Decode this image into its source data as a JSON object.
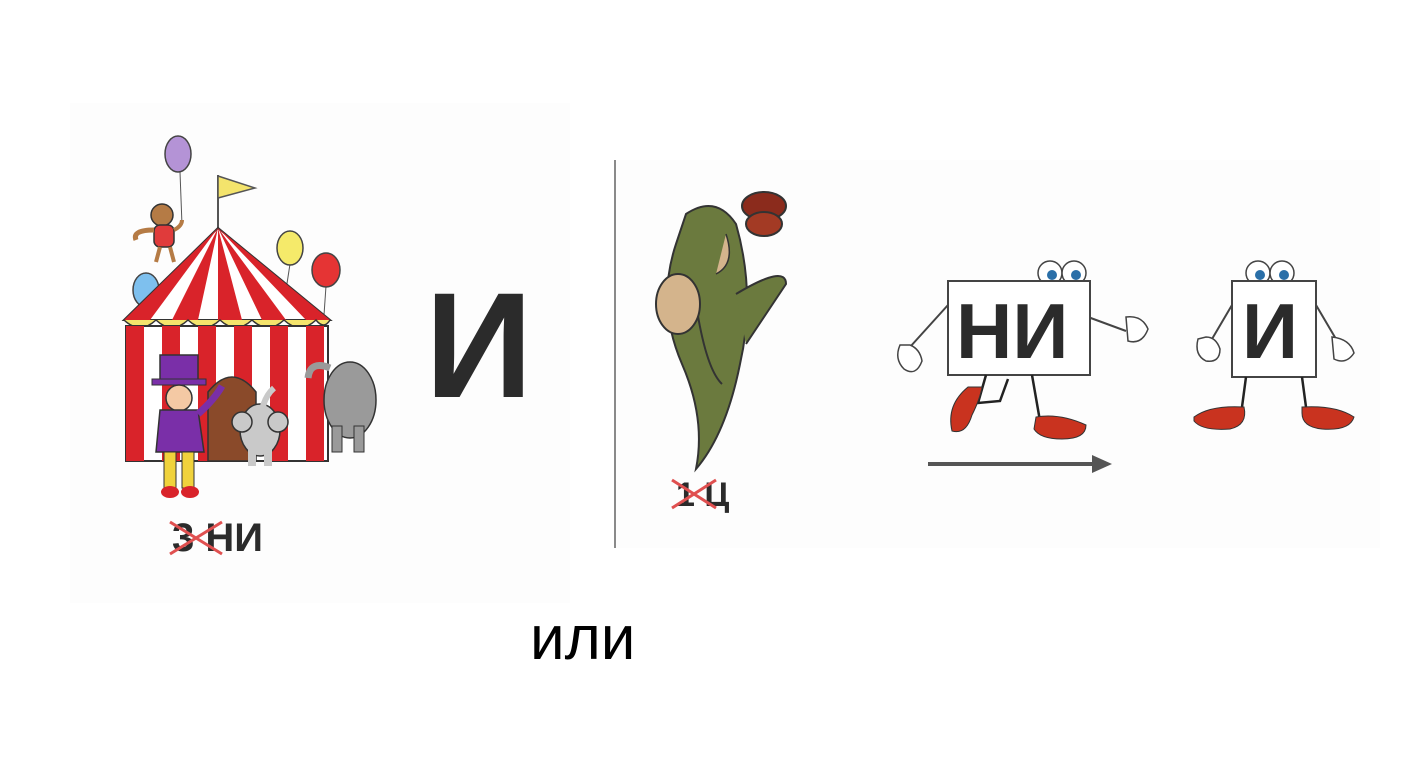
{
  "left_rebus": {
    "big_letter": "И",
    "struck_digit": "3",
    "suffix": "НИ"
  },
  "right_rebus": {
    "struck_digit": "1",
    "suffix": "Ц",
    "card_moving": "НИ",
    "card_standing": "И"
  },
  "or_word": "или",
  "colors": {
    "text": "#2b2b2b",
    "strike": "#e05050",
    "tent_red": "#d9232a",
    "arrow": "#555555"
  },
  "icons": [
    "circus-tent-icon",
    "balloon-icon",
    "monkey-icon",
    "ringmaster-icon",
    "elephant-icon",
    "kangaroo-icon",
    "walking-card-icon",
    "standing-card-icon",
    "arrow-right-icon"
  ]
}
